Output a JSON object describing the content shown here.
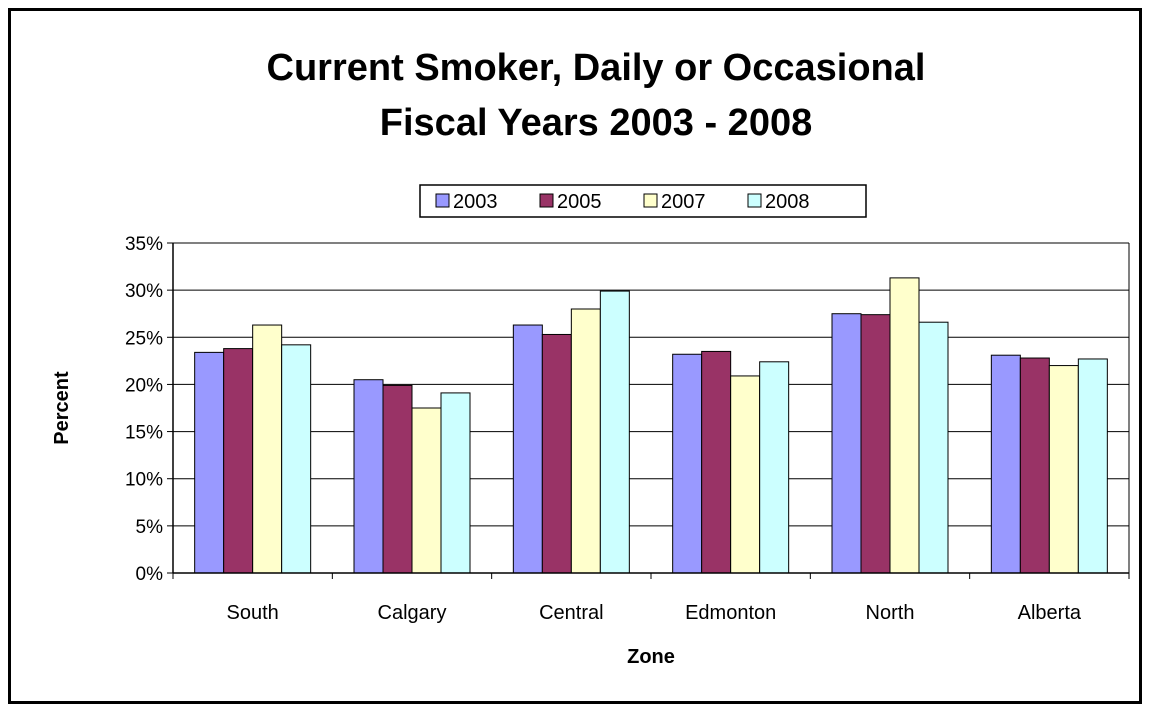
{
  "chart_data": {
    "type": "bar",
    "title_line1": "Current Smoker, Daily or Occasional",
    "title_line2": "Fiscal Years 2003 - 2008",
    "xlabel": "Zone",
    "ylabel": "Percent",
    "categories": [
      "South",
      "Calgary",
      "Central",
      "Edmonton",
      "North",
      "Alberta"
    ],
    "series": [
      {
        "name": "2003",
        "color": "#9999ff",
        "values": [
          23.4,
          20.5,
          26.3,
          23.2,
          27.5,
          23.1
        ]
      },
      {
        "name": "2005",
        "color": "#993366",
        "values": [
          23.8,
          19.9,
          25.3,
          23.5,
          27.4,
          22.8
        ]
      },
      {
        "name": "2007",
        "color": "#ffffcc",
        "values": [
          26.3,
          17.5,
          28.0,
          20.9,
          31.3,
          22.0
        ]
      },
      {
        "name": "2008",
        "color": "#ccffff",
        "values": [
          24.2,
          19.1,
          29.9,
          22.4,
          26.6,
          22.7
        ]
      }
    ],
    "y_ticks": [
      "0%",
      "5%",
      "10%",
      "15%",
      "20%",
      "25%",
      "30%",
      "35%"
    ],
    "ylim": [
      0,
      35
    ],
    "y_tick_values": [
      0,
      5,
      10,
      15,
      20,
      25,
      30,
      35
    ],
    "grid": true,
    "legend_position": "top-center"
  }
}
